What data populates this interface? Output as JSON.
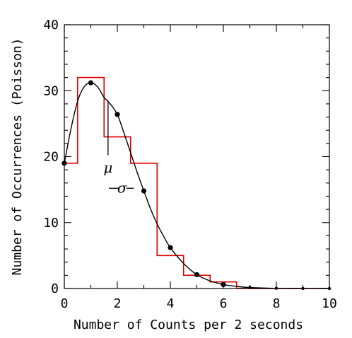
{
  "chart_data": {
    "type": "line",
    "title": "",
    "xlabel": "Number of Counts per 2 seconds",
    "ylabel": "Number of Occurrences (Poisson)",
    "xlim": [
      0,
      10
    ],
    "ylim": [
      0,
      40
    ],
    "x_ticks": [
      0,
      2,
      4,
      6,
      8,
      10
    ],
    "y_ticks": [
      0,
      10,
      20,
      30,
      40
    ],
    "x_tick_labels": [
      "0",
      "2",
      "4",
      "6",
      "8",
      "10"
    ],
    "y_tick_labels": [
      "0",
      "10",
      "20",
      "30",
      "40"
    ],
    "grid": false,
    "legend": "none",
    "series": [
      {
        "kind": "step-histogram",
        "color": "#e00000",
        "bins": [
          {
            "x0": 0.0,
            "x1": 0.5,
            "y": 19
          },
          {
            "x0": 0.5,
            "x1": 1.5,
            "y": 32
          },
          {
            "x0": 1.5,
            "x1": 2.5,
            "y": 23
          },
          {
            "x0": 2.5,
            "x1": 3.5,
            "y": 19
          },
          {
            "x0": 3.5,
            "x1": 4.5,
            "y": 5
          },
          {
            "x0": 4.5,
            "x1": 5.5,
            "y": 2
          },
          {
            "x0": 5.5,
            "x1": 6.5,
            "y": 1
          },
          {
            "x0": 6.5,
            "x1": 10.0,
            "y": 0
          }
        ]
      },
      {
        "kind": "points",
        "color": "#000000",
        "x": [
          0,
          1,
          2,
          3,
          4,
          5,
          6,
          7,
          8,
          9,
          10
        ],
        "y": [
          19.0,
          31.2,
          26.4,
          14.8,
          6.2,
          2.1,
          0.6,
          0.15,
          0.03,
          0.01,
          0.0
        ]
      },
      {
        "kind": "smooth-curve",
        "color": "#000000",
        "x": [
          0,
          0.25,
          0.5,
          0.75,
          1.0,
          1.25,
          1.5,
          1.75,
          2.0,
          2.25,
          2.5,
          2.75,
          3.0,
          3.25,
          3.5,
          3.75,
          4.0,
          4.5,
          5.0,
          5.5,
          6.0,
          6.5,
          7.0,
          8.0,
          9.0,
          10.0
        ],
        "y": [
          19.0,
          24.2,
          28.4,
          30.6,
          31.2,
          30.6,
          29.0,
          27.9,
          26.4,
          23.6,
          20.6,
          17.6,
          14.8,
          12.1,
          9.8,
          7.9,
          6.2,
          3.8,
          2.1,
          1.15,
          0.6,
          0.32,
          0.15,
          0.03,
          0.01,
          0.0
        ]
      }
    ],
    "annotations": [
      {
        "label": "μ",
        "x": 1.65,
        "y": 28.5,
        "marker": "vertical-tick"
      },
      {
        "label": "σ",
        "x": 2.3,
        "y": 15.2,
        "marker": "horizontal-tick"
      }
    ]
  }
}
